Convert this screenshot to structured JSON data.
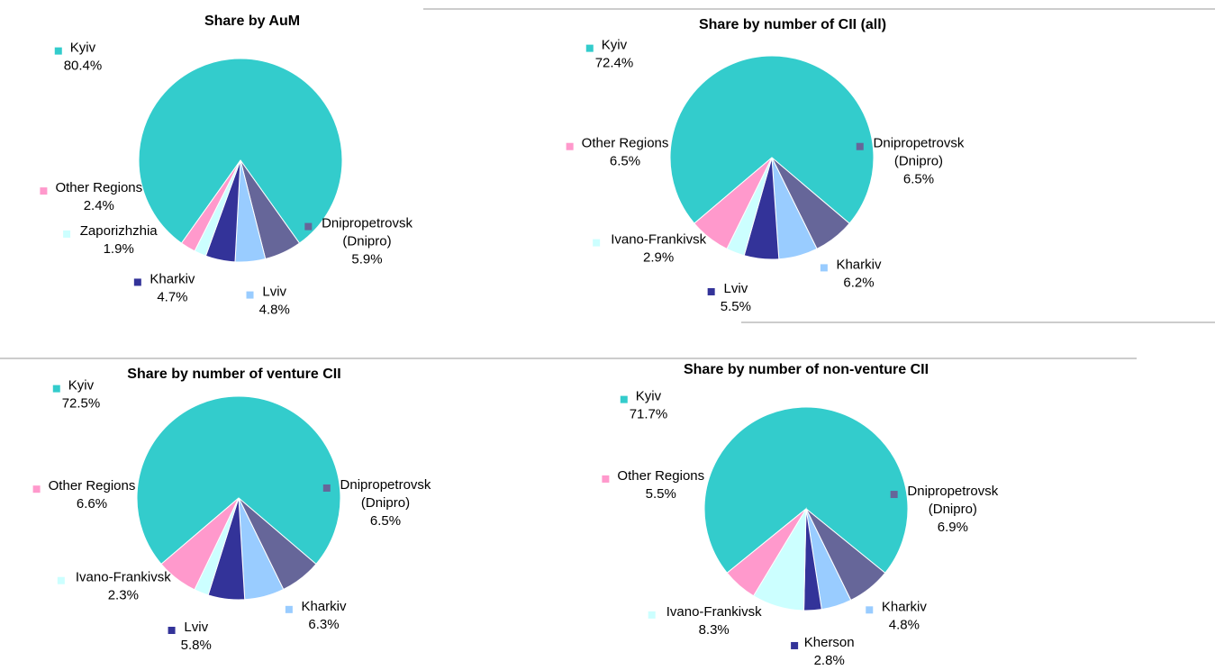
{
  "chart_data": [
    {
      "type": "pie",
      "title": "Share by AuM",
      "categories": [
        "Kyiv",
        "Dnipropetrovsk (Dnipro)",
        "Lviv",
        "Kharkiv",
        "Zaporizhzhia",
        "Other Regions"
      ],
      "values": [
        80.4,
        5.9,
        4.8,
        4.7,
        1.9,
        2.4
      ],
      "value_labels": [
        "80.4%",
        "5.9%",
        "4.8%",
        "4.7%",
        "1.9%",
        "2.4%"
      ],
      "colors": [
        "#33cccc",
        "#666699",
        "#99ccff",
        "#333399",
        "#ccffff",
        "#ff99cc"
      ]
    },
    {
      "type": "pie",
      "title": "Share by number of CII (all)",
      "categories": [
        "Kyiv",
        "Dnipropetrovsk (Dnipro)",
        "Kharkiv",
        "Lviv",
        "Ivano-Frankivsk",
        "Other Regions"
      ],
      "values": [
        72.4,
        6.5,
        6.2,
        5.5,
        2.9,
        6.5
      ],
      "value_labels": [
        "72.4%",
        "6.5%",
        "6.2%",
        "5.5%",
        "2.9%",
        "6.5%"
      ],
      "colors": [
        "#33cccc",
        "#666699",
        "#99ccff",
        "#333399",
        "#ccffff",
        "#ff99cc"
      ]
    },
    {
      "type": "pie",
      "title": "Share by number of venture CII",
      "categories": [
        "Kyiv",
        "Dnipropetrovsk (Dnipro)",
        "Kharkiv",
        "Lviv",
        "Ivano-Frankivsk",
        "Other Regions"
      ],
      "values": [
        72.5,
        6.5,
        6.3,
        5.8,
        2.3,
        6.6
      ],
      "value_labels": [
        "72.5%",
        "6.5%",
        "6.3%",
        "5.8%",
        "2.3%",
        "6.6%"
      ],
      "colors": [
        "#33cccc",
        "#666699",
        "#99ccff",
        "#333399",
        "#ccffff",
        "#ff99cc"
      ]
    },
    {
      "type": "pie",
      "title": "Share by number of non-venture CII",
      "categories": [
        "Kyiv",
        "Dnipropetrovsk (Dnipro)",
        "Kharkiv",
        "Kherson",
        "Ivano-Frankivsk",
        "Other Regions"
      ],
      "values": [
        71.7,
        6.9,
        4.8,
        2.8,
        8.3,
        5.5
      ],
      "value_labels": [
        "71.7%",
        "6.9%",
        "4.8%",
        "2.8%",
        "8.3%",
        "5.5%"
      ],
      "colors": [
        "#33cccc",
        "#666699",
        "#99ccff",
        "#333399",
        "#ccffff",
        "#ff99cc"
      ]
    }
  ]
}
